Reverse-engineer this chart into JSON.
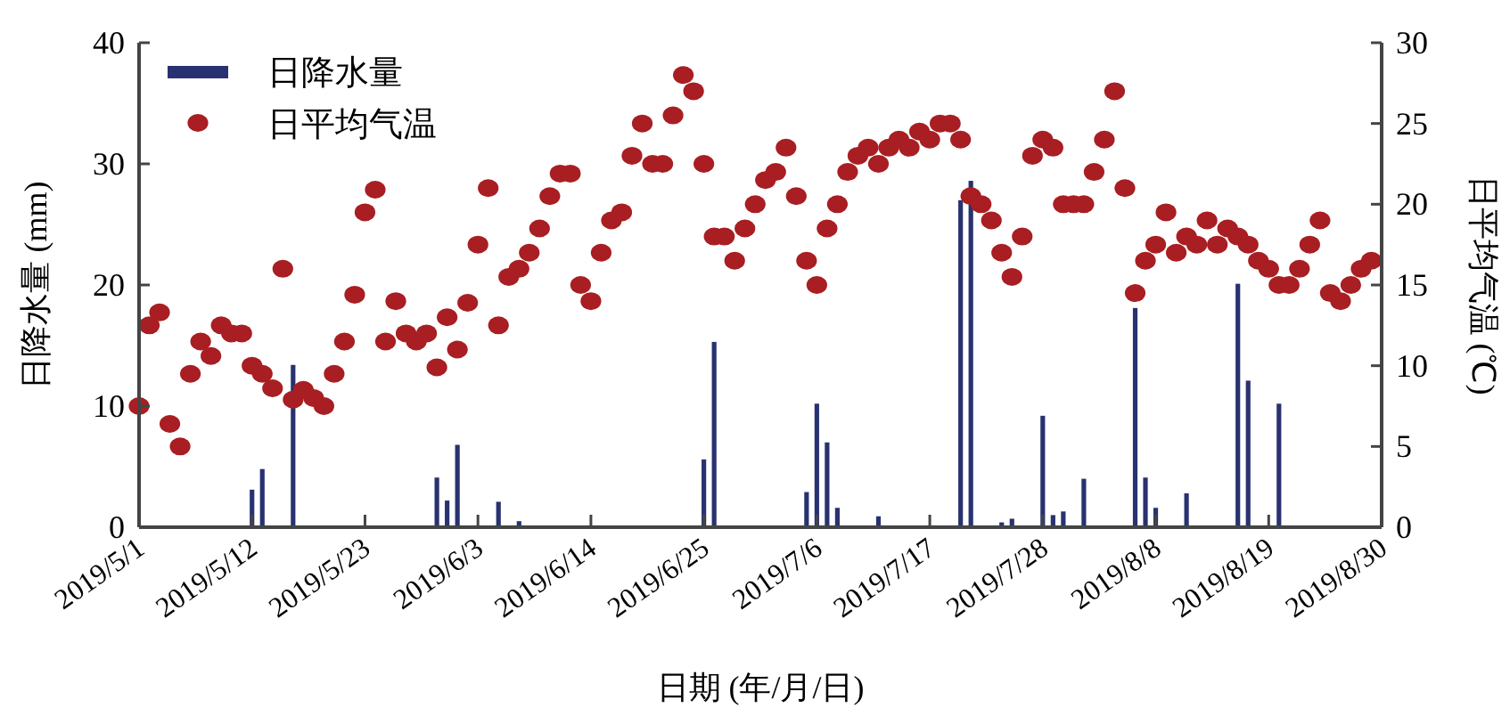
{
  "chart_data": {
    "type": "bar",
    "xlabel": "日期 (年/月/日)",
    "ylabel": "日降水量 (mm)",
    "y2label": "日平均气温 (℃)",
    "xlim": [
      "2019-05-01",
      "2019-08-30"
    ],
    "xticks": [
      {
        "value": "2019-05-01",
        "label": "2019/5/1"
      },
      {
        "value": "2019-05-12",
        "label": "2019/5/12"
      },
      {
        "value": "2019-05-23",
        "label": "2019/5/23"
      },
      {
        "value": "2019-06-03",
        "label": "2019/6/3"
      },
      {
        "value": "2019-06-14",
        "label": "2019/6/14"
      },
      {
        "value": "2019-06-25",
        "label": "2019/6/25"
      },
      {
        "value": "2019-07-06",
        "label": "2019/7/6"
      },
      {
        "value": "2019-07-17",
        "label": "2019/7/17"
      },
      {
        "value": "2019-07-28",
        "label": "2019/7/28"
      },
      {
        "value": "2019-08-08",
        "label": "2019/8/8"
      },
      {
        "value": "2019-08-19",
        "label": "2019/8/19"
      },
      {
        "value": "2019-08-30",
        "label": "2019/8/30"
      }
    ],
    "ylim": [
      0,
      40
    ],
    "yticks": [
      0,
      10,
      20,
      30,
      40
    ],
    "y2lim": [
      0,
      30
    ],
    "y2ticks": [
      0,
      5,
      10,
      15,
      20,
      25,
      30
    ],
    "grid": false,
    "legend": "top left",
    "series": [
      {
        "name": "日降水量",
        "color": "#283270",
        "x": [
          "2019-05-12",
          "2019-05-13",
          "2019-05-16",
          "2019-05-30",
          "2019-05-31",
          "2019-06-01",
          "2019-06-05",
          "2019-06-07",
          "2019-06-25",
          "2019-06-26",
          "2019-07-05",
          "2019-07-06",
          "2019-07-07",
          "2019-07-08",
          "2019-07-12",
          "2019-07-20",
          "2019-07-21",
          "2019-07-24",
          "2019-07-25",
          "2019-07-28",
          "2019-07-29",
          "2019-07-30",
          "2019-08-01",
          "2019-08-06",
          "2019-08-07",
          "2019-08-08",
          "2019-08-11",
          "2019-08-16",
          "2019-08-17",
          "2019-08-20"
        ],
        "values": [
          3.1,
          4.8,
          13.4,
          4.1,
          2.2,
          6.8,
          2.1,
          0.5,
          5.6,
          15.3,
          2.9,
          10.2,
          7.0,
          1.6,
          0.9,
          27.0,
          28.6,
          0.4,
          0.7,
          9.2,
          1.0,
          1.3,
          4.0,
          18.1,
          4.1,
          1.6,
          2.8,
          20.1,
          12.1,
          10.2
        ]
      },
      {
        "name": "日平均气温",
        "type": "scatter",
        "axis": "y2",
        "marker": "circle",
        "color": "#a81e22",
        "x": [
          "2019-05-01",
          "2019-05-02",
          "2019-05-03",
          "2019-05-04",
          "2019-05-05",
          "2019-05-06",
          "2019-05-07",
          "2019-05-08",
          "2019-05-09",
          "2019-05-10",
          "2019-05-11",
          "2019-05-12",
          "2019-05-13",
          "2019-05-14",
          "2019-05-15",
          "2019-05-16",
          "2019-05-17",
          "2019-05-18",
          "2019-05-19",
          "2019-05-20",
          "2019-05-21",
          "2019-05-22",
          "2019-05-23",
          "2019-05-24",
          "2019-05-25",
          "2019-05-26",
          "2019-05-27",
          "2019-05-28",
          "2019-05-29",
          "2019-05-30",
          "2019-05-31",
          "2019-06-01",
          "2019-06-02",
          "2019-06-03",
          "2019-06-04",
          "2019-06-05",
          "2019-06-06",
          "2019-06-07",
          "2019-06-08",
          "2019-06-09",
          "2019-06-10",
          "2019-06-11",
          "2019-06-12",
          "2019-06-13",
          "2019-06-14",
          "2019-06-15",
          "2019-06-16",
          "2019-06-17",
          "2019-06-18",
          "2019-06-19",
          "2019-06-20",
          "2019-06-21",
          "2019-06-22",
          "2019-06-23",
          "2019-06-24",
          "2019-06-25",
          "2019-06-26",
          "2019-06-27",
          "2019-06-28",
          "2019-06-29",
          "2019-06-30",
          "2019-07-01",
          "2019-07-02",
          "2019-07-03",
          "2019-07-04",
          "2019-07-05",
          "2019-07-06",
          "2019-07-07",
          "2019-07-08",
          "2019-07-09",
          "2019-07-10",
          "2019-07-11",
          "2019-07-12",
          "2019-07-13",
          "2019-07-14",
          "2019-07-15",
          "2019-07-16",
          "2019-07-17",
          "2019-07-18",
          "2019-07-19",
          "2019-07-20",
          "2019-07-21",
          "2019-07-22",
          "2019-07-23",
          "2019-07-24",
          "2019-07-25",
          "2019-07-26",
          "2019-07-27",
          "2019-07-28",
          "2019-07-29",
          "2019-07-30",
          "2019-07-31",
          "2019-08-01",
          "2019-08-02",
          "2019-08-03",
          "2019-08-04",
          "2019-08-05",
          "2019-08-06",
          "2019-08-07",
          "2019-08-08",
          "2019-08-09",
          "2019-08-10",
          "2019-08-11",
          "2019-08-12",
          "2019-08-13",
          "2019-08-14",
          "2019-08-15",
          "2019-08-16",
          "2019-08-17",
          "2019-08-18",
          "2019-08-19",
          "2019-08-20",
          "2019-08-21",
          "2019-08-22",
          "2019-08-23",
          "2019-08-24",
          "2019-08-25",
          "2019-08-26",
          "2019-08-27",
          "2019-08-28",
          "2019-08-29"
        ],
        "values": [
          7.5,
          12.5,
          13.3,
          6.4,
          5.0,
          9.5,
          11.5,
          10.6,
          12.5,
          12.0,
          12.0,
          10.0,
          9.5,
          8.6,
          16.0,
          7.9,
          8.5,
          8.0,
          7.5,
          9.5,
          11.5,
          14.4,
          19.5,
          20.9,
          11.5,
          14.0,
          12.0,
          11.5,
          12.0,
          9.9,
          13.0,
          11.0,
          13.9,
          17.5,
          21.0,
          12.5,
          15.5,
          16.0,
          17.0,
          18.5,
          20.5,
          21.9,
          21.9,
          15.0,
          14.0,
          17.0,
          19.0,
          19.5,
          23.0,
          25.0,
          22.5,
          22.5,
          25.5,
          28.0,
          27.0,
          22.5,
          18.0,
          18.0,
          16.5,
          18.5,
          20.0,
          21.5,
          22.0,
          23.5,
          20.5,
          16.5,
          15.0,
          18.5,
          20.0,
          22.0,
          23.0,
          23.5,
          22.5,
          23.5,
          24.0,
          23.5,
          24.5,
          24.0,
          25.0,
          25.0,
          24.0,
          20.5,
          20.0,
          19.0,
          17.0,
          15.5,
          18.0,
          23.0,
          24.0,
          23.5,
          20.0,
          20.0,
          20.0,
          22.0,
          24.0,
          27.0,
          21.0,
          14.5,
          16.5,
          17.5,
          19.5,
          17.0,
          18.0,
          17.5,
          19.0,
          17.5,
          18.5,
          18.0,
          17.5,
          16.5,
          16.0,
          15.0,
          15.0,
          16.0,
          17.5,
          19.0,
          14.5,
          14.0,
          15.0,
          16.0,
          16.5
        ]
      }
    ]
  }
}
